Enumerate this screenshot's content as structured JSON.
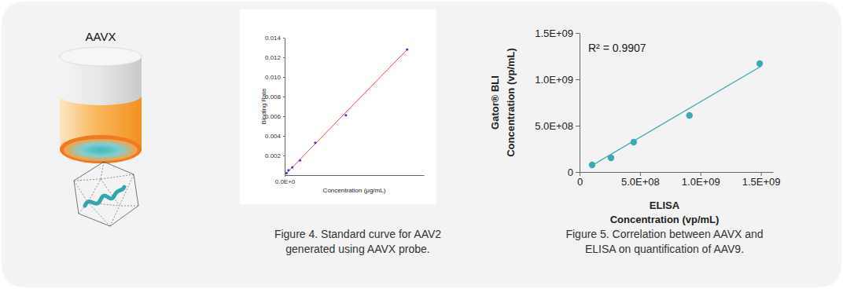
{
  "illustration": {
    "label": "AAVX"
  },
  "chart_data": [
    {
      "type": "scatter",
      "caption": [
        "Figure 4. Standard curve for AAV2",
        "generated using AAVX probe."
      ],
      "x_label": "Concentration (μg/mL)",
      "y_label": "Binding Rate",
      "x": [
        0.01375,
        0.0275,
        0.055,
        0.11,
        0.22,
        0.44,
        0.88
      ],
      "values": [
        0.0002,
        0.0005,
        0.0008,
        0.0015,
        0.0033,
        0.0061,
        0.0128
      ],
      "color": "#3b3bd6",
      "marker": "circle",
      "fit": {
        "x": [
          0,
          0.88
        ],
        "values": [
          0,
          0.0128
        ],
        "color": "#e8463a"
      },
      "xlim": [
        0,
        1
      ],
      "ylim": [
        0,
        0.014
      ],
      "xticks": [
        {
          "value": 0,
          "label": "0.0E+0"
        }
      ],
      "yticks": [
        0.002,
        0.004,
        0.006,
        0.008,
        {
          "value": 0.01,
          "label": "0.010"
        },
        0.012,
        0.014
      ]
    },
    {
      "type": "scatter",
      "caption": [
        "Figure 5. Correlation between AAVX and",
        "ELISA on quantification of AAV9."
      ],
      "x_label": [
        "ELISA",
        "Concentration (vp/mL)"
      ],
      "y_label": [
        "Gator® BLI",
        "Concentration (vp/mL)"
      ],
      "annotations": [
        "R² = 0.9907"
      ],
      "x": [
        104000000,
        260000000,
        448000000,
        909000000,
        1490000000
      ],
      "values": [
        76000000,
        153000000,
        322000000,
        610000000,
        1170000000
      ],
      "color": "#3aaab3",
      "marker": "circle",
      "fit": {
        "x": [
          100000000,
          1500000000
        ],
        "values": [
          68000000,
          1140000000
        ],
        "color": "#3aaab3"
      },
      "xlim": [
        0,
        1600000000
      ],
      "ylim": [
        0,
        1500000000
      ],
      "xticks": [
        0,
        {
          "value": 500000000,
          "label": "5.0E+08"
        },
        {
          "value": 1000000000,
          "label": "1.0E+09"
        },
        {
          "value": 1500000000,
          "label": "1.5E+09"
        }
      ],
      "yticks": [
        0,
        {
          "value": 500000000,
          "label": "5.0E+08"
        },
        {
          "value": 1000000000,
          "label": "1.0E+09"
        },
        {
          "value": 1500000000,
          "label": "1.5E+09"
        }
      ]
    }
  ]
}
